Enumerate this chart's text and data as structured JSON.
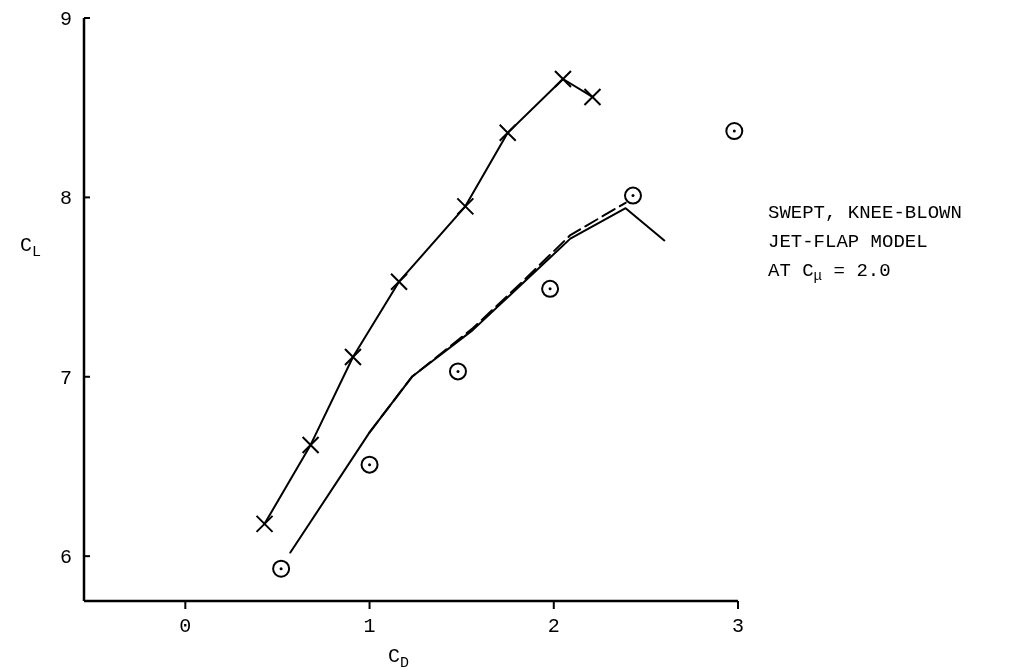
{
  "chart_data": {
    "type": "line",
    "xlabel": "C$_{D}$",
    "ylabel": "C$_{L}$",
    "xlim": [
      -0.55,
      3
    ],
    "xticks": [
      0,
      1,
      2,
      3
    ],
    "ylim": [
      5.75,
      9
    ],
    "yticks": [
      6,
      7,
      8,
      9
    ],
    "annotations": [
      "SWEPT, KNEE-BLOWN\nJET-FLAP MODEL\nAT C$_{μ}$ = 2.0"
    ],
    "series": [
      {
        "color": "#000000",
        "marker": "cross",
        "line_style": "solid",
        "x": [
          0.43,
          0.68,
          0.91,
          1.16,
          1.52,
          1.75,
          2.05,
          2.21
        ],
        "values": [
          6.18,
          6.62,
          7.11,
          7.53,
          7.95,
          8.36,
          8.66,
          8.56
        ]
      },
      {
        "type": "scatter",
        "color": "#000000",
        "marker": "circle",
        "x": [
          0.52,
          1.0,
          1.48,
          1.98,
          2.43,
          2.98
        ],
        "values": [
          5.93,
          6.51,
          7.03,
          7.49,
          8.01,
          8.37
        ]
      },
      {
        "color": "#000000",
        "marker": "none",
        "line_style": "solid",
        "x": [
          0.57,
          1.0,
          1.23,
          1.56,
          1.83,
          2.09,
          2.39,
          2.6
        ],
        "values": [
          6.02,
          6.69,
          7.0,
          7.26,
          7.52,
          7.77,
          7.94,
          7.76
        ]
      },
      {
        "color": "#000000",
        "marker": "none",
        "line_style": "dashed",
        "x": [
          1.0,
          1.23,
          1.56,
          1.83,
          2.09,
          2.39
        ],
        "values": [
          6.69,
          7.0,
          7.27,
          7.53,
          7.79,
          7.97
        ]
      }
    ]
  }
}
